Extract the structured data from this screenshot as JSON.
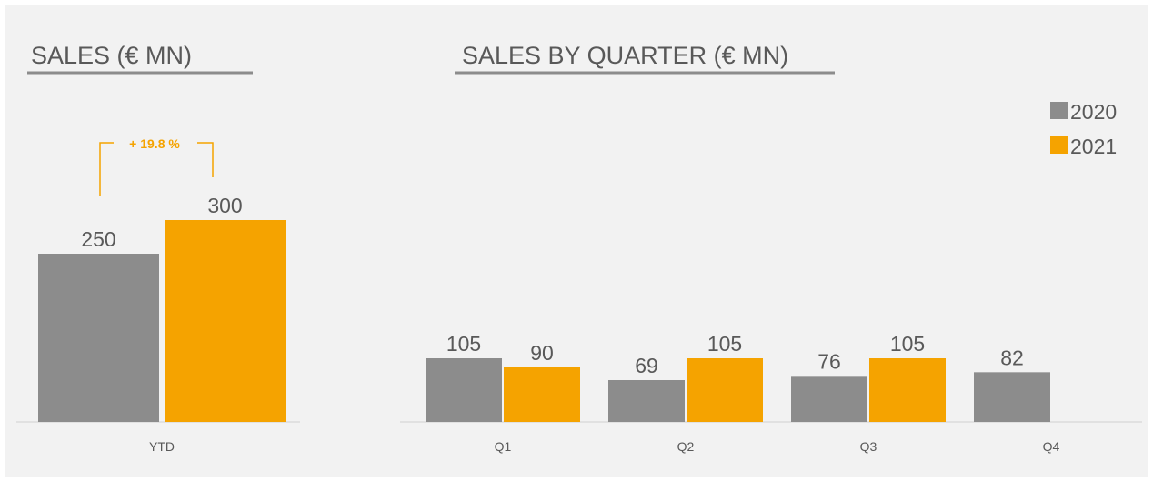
{
  "chart_data": [
    {
      "type": "bar",
      "title": "SALES (€ MN)",
      "categories": [
        "YTD"
      ],
      "series": [
        {
          "color": "#8c8c8c",
          "values": [
            250
          ]
        },
        {
          "color": "#f5a300",
          "values": [
            300
          ]
        }
      ],
      "annotation": "+ 19.8 %"
    },
    {
      "type": "bar",
      "title": "SALES BY QUARTER (€ MN)",
      "categories": [
        "Q1",
        "Q2",
        "Q3",
        "Q4"
      ],
      "series": [
        {
          "name": "2020",
          "color": "#8c8c8c",
          "values": [
            105,
            69,
            76,
            82
          ]
        },
        {
          "name": "2021",
          "color": "#f5a300",
          "values": [
            90,
            105,
            105,
            null
          ]
        }
      ],
      "legend": "upper right"
    }
  ]
}
